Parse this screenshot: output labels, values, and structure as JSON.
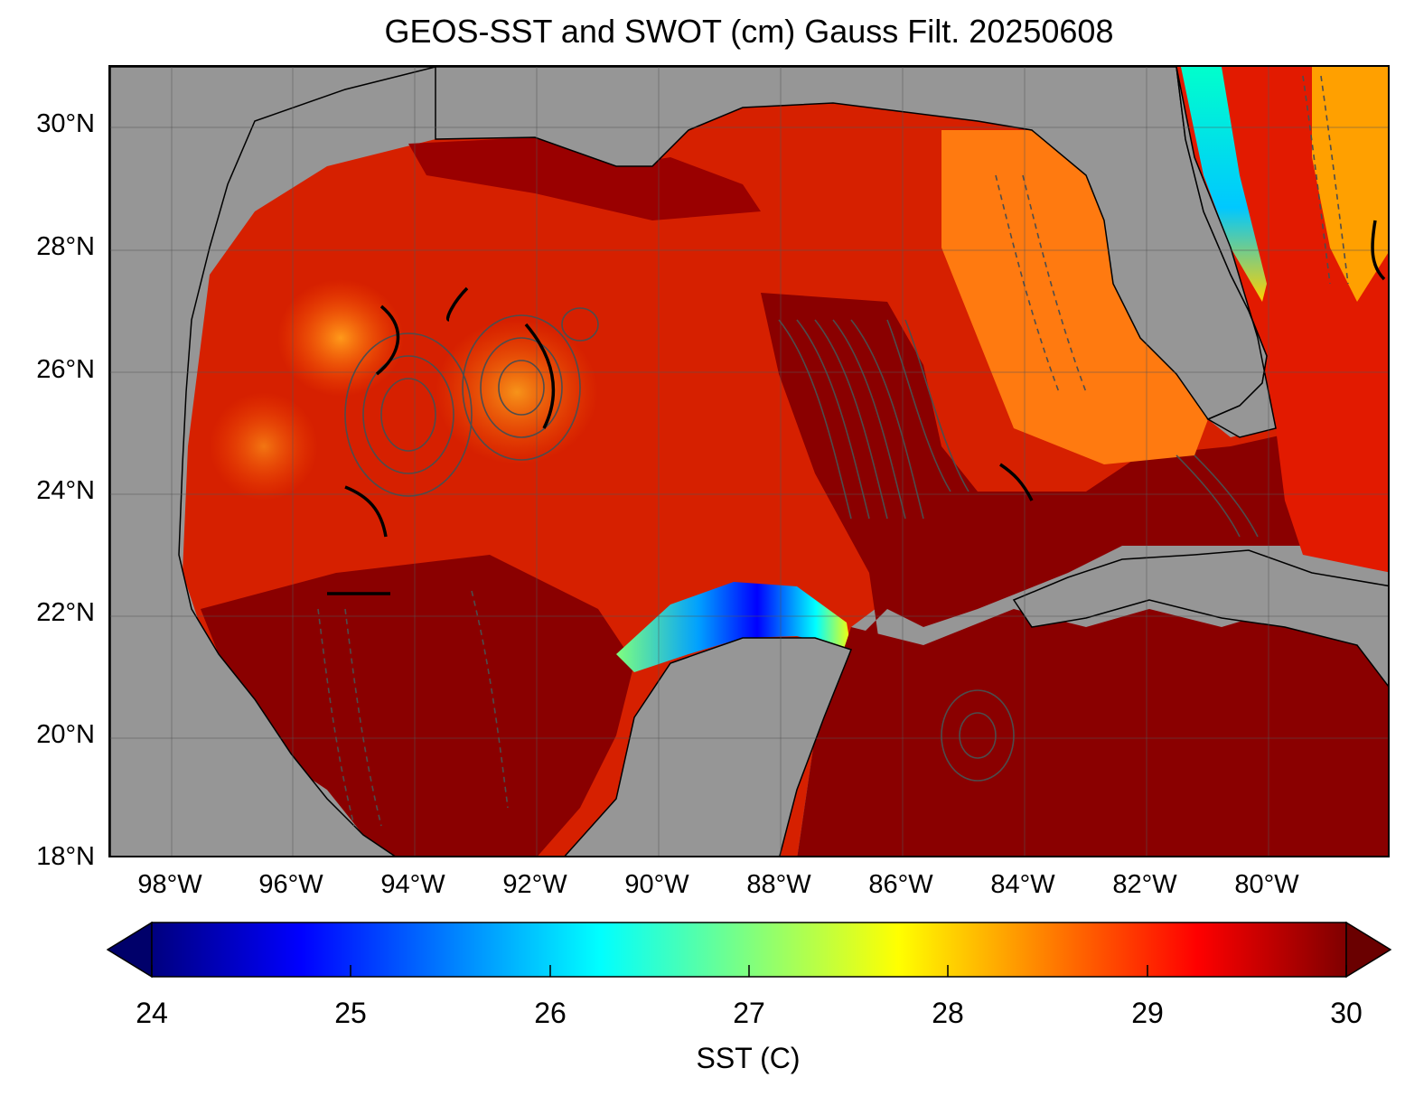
{
  "title": "GEOS-SST  and SWOT (cm) Gauss Filt. 20250608",
  "map": {
    "lat_labels": [
      "30°N",
      "28°N",
      "26°N",
      "24°N",
      "22°N",
      "20°N",
      "18°N"
    ],
    "lon_labels": [
      "98°W",
      "96°W",
      "94°W",
      "92°W",
      "90°W",
      "88°W",
      "86°W",
      "84°W",
      "82°W",
      "80°W"
    ],
    "land_color": "#969696",
    "ocean_colormap": "jet",
    "contour_color": "#4d4d4d",
    "gridlines": true
  },
  "colorbar": {
    "label": "SST (C)",
    "ticks": [
      "24",
      "25",
      "26",
      "27",
      "28",
      "29",
      "30"
    ],
    "range": [
      24,
      30
    ],
    "extend": "both",
    "colors": [
      "#00007f",
      "#0000ff",
      "#007fff",
      "#00ffff",
      "#7fff7f",
      "#ffff00",
      "#ff7f00",
      "#ff0000",
      "#7f0000"
    ]
  }
}
